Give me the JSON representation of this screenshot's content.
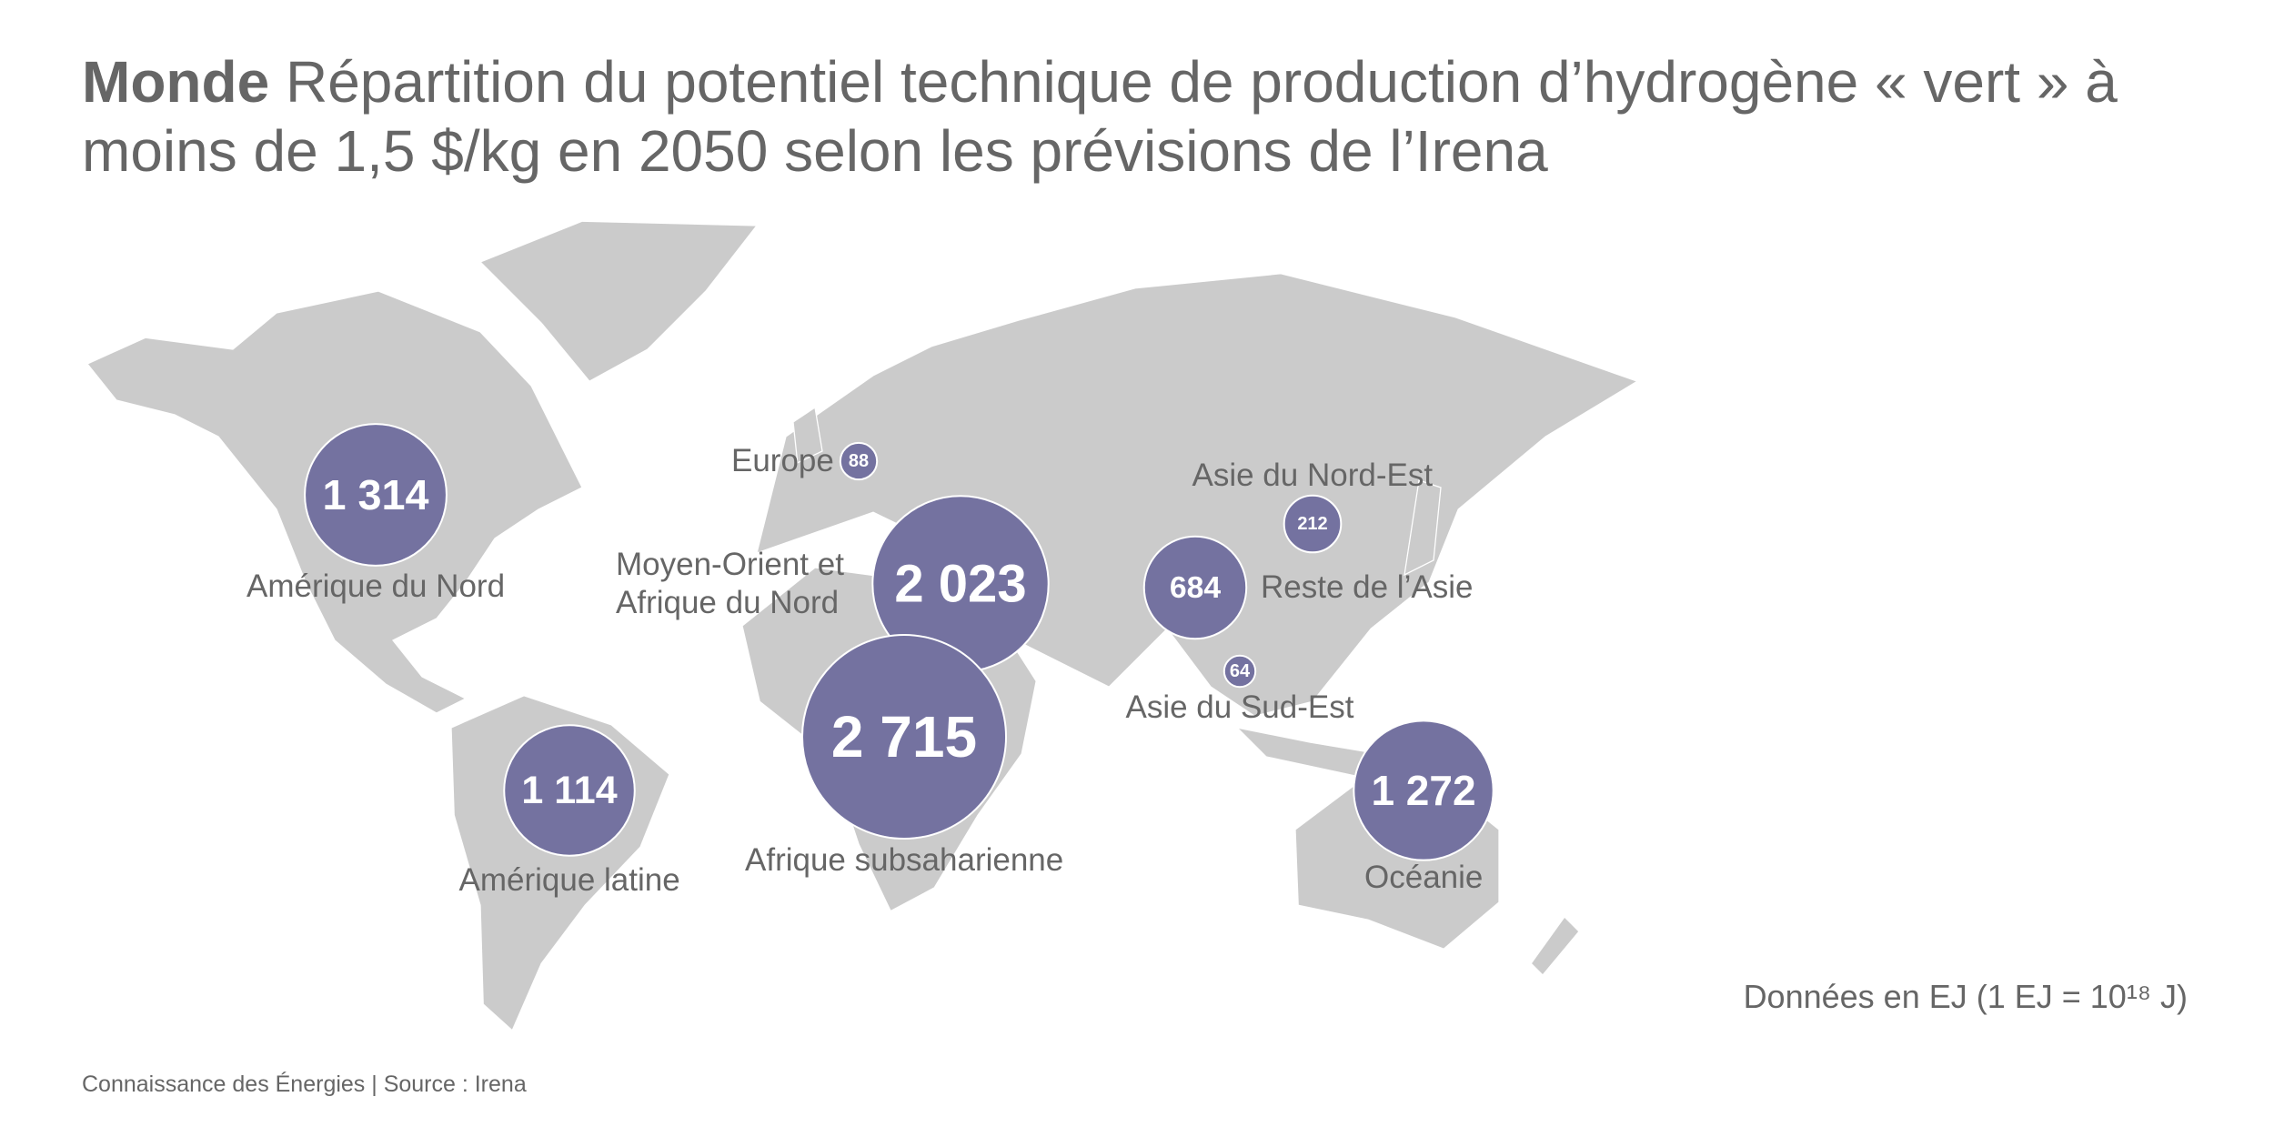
{
  "chart_data": {
    "type": "bubble-map",
    "title_bold": "Monde",
    "title": "Répartition du potentiel technique de production d’hydrogène « vert » à moins de 1,5 $/kg en 2050 selon les prévisions de l’Irena",
    "categories": [
      "Amérique du Nord",
      "Amérique latine",
      "Europe",
      "Moyen-Orient et Afrique du Nord",
      "Afrique subsaharienne",
      "Asie du Nord-Est",
      "Reste de l’Asie",
      "Asie du Sud-Est",
      "Océanie"
    ],
    "values": [
      1314,
      1114,
      88,
      2023,
      2715,
      212,
      684,
      64,
      1272
    ],
    "value_labels": [
      "1 314",
      "1 114",
      "88",
      "2 023",
      "2 715",
      "212",
      "684",
      "64",
      "1 272"
    ],
    "color": "#7472a0",
    "note": "Données en EJ (1 EJ = 10¹⁸ J)",
    "source": "Connaissance des Énergies | Source : Irena"
  }
}
